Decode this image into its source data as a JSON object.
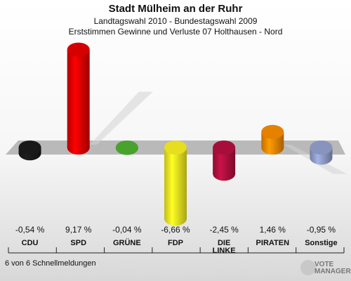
{
  "header": {
    "title": "Stadt Mülheim an der Ruhr",
    "subtitle": "Landtagswahl 2010 - Bundestagswahl 2009",
    "subtitle2": "Erststimmen Gewinne und Verluste 07 Holthausen - Nord"
  },
  "footer": {
    "text": "6 von 6 Schnellmeldungen"
  },
  "brand": {
    "line1": "VOTE",
    "line2": "MANAGER"
  },
  "chart_data": {
    "type": "bar",
    "title": "Stadt Mülheim an der Ruhr",
    "categories": [
      "CDU",
      "SPD",
      "GRÜNE",
      "FDP",
      "DIE LINKE",
      "PIRATEN",
      "Sonstige"
    ],
    "values": [
      -0.54,
      9.17,
      -0.04,
      -6.66,
      -2.45,
      1.46,
      -0.95
    ],
    "value_labels": [
      "-0,54 %",
      "9,17 %",
      "-0,04 %",
      "-6,66 %",
      "-2,45 %",
      "1,46 %",
      "-0,95 %"
    ],
    "colors": [
      "#1a1a1a",
      "#e00000",
      "#4caa30",
      "#f2ea20",
      "#b0103e",
      "#f08800",
      "#8f9cc8"
    ],
    "grid": false,
    "legend": "none"
  }
}
